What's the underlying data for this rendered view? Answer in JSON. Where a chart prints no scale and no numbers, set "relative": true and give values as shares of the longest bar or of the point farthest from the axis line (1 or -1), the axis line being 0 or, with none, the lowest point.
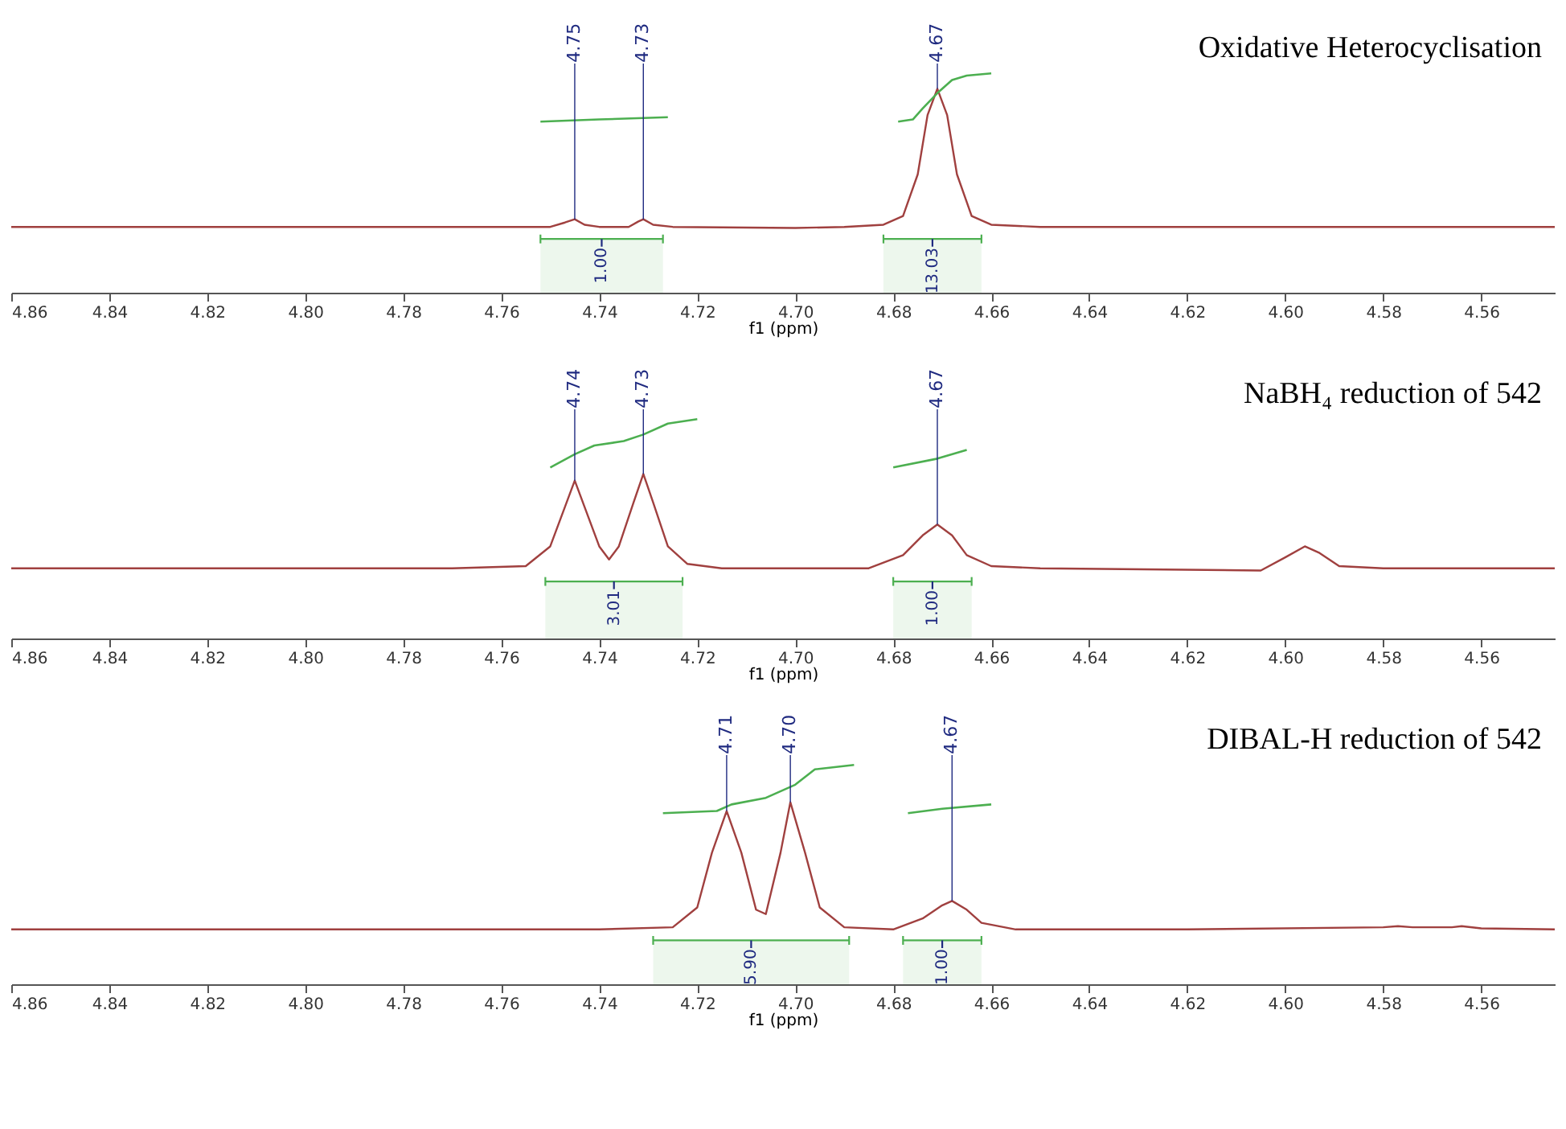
{
  "chart_data": [
    {
      "type": "line",
      "title": "Oxidative Heterocyclisation",
      "xlabel": "f1 (ppm)",
      "xlim": [
        4.86,
        4.545
      ],
      "xticks": [
        4.86,
        4.84,
        4.82,
        {
          "value": 4.8,
          "label": "4.80"
        },
        4.78,
        4.76,
        4.74,
        4.72,
        {
          "value": 4.7,
          "label": "4.70"
        },
        4.68,
        4.66,
        4.64,
        4.62,
        {
          "value": 4.6,
          "label": "4.60"
        },
        4.58,
        4.56
      ],
      "relative": true,
      "tick_labels": "x",
      "series": [
        {
          "color": "#a0403f",
          "x": [
            4.86,
            4.8,
            4.76,
            4.75,
            4.747,
            4.745,
            4.743,
            4.74,
            4.734,
            4.732,
            4.731,
            4.729,
            4.725,
            4.7,
            4.69,
            4.682,
            4.678,
            4.675,
            4.673,
            4.671,
            4.669,
            4.667,
            4.664,
            4.66,
            4.65,
            4.6,
            4.545
          ],
          "values": [
            0.3,
            0.3,
            0.3,
            0.3,
            0.32,
            0.335,
            0.31,
            0.3,
            0.3,
            0.325,
            0.335,
            0.31,
            0.3,
            0.295,
            0.3,
            0.31,
            0.35,
            0.54,
            0.81,
            0.93,
            0.81,
            0.54,
            0.35,
            0.31,
            0.3,
            0.3,
            0.3
          ]
        },
        {
          "color": "#4caf50",
          "x": [
            4.752,
            4.74,
            4.726
          ],
          "values": [
            0.78,
            0.79,
            0.8
          ]
        },
        {
          "color": "#4caf50",
          "x": [
            4.679,
            4.676,
            4.674,
            4.671,
            4.668,
            4.665,
            4.66
          ],
          "values": [
            0.78,
            0.79,
            0.84,
            0.91,
            0.97,
            0.99,
            1.0
          ]
        }
      ],
      "annotations": [
        {
          "text": "4.75",
          "x": 4.745,
          "y": 0.335
        },
        {
          "text": "4.73",
          "x": 4.731,
          "y": 0.335
        },
        {
          "text": "4.67",
          "x": 4.671,
          "y": 0.93
        }
      ],
      "bands": [
        {
          "axis": "x",
          "from": 4.752,
          "to": 4.727,
          "label": "1.00",
          "color": "#4caf50"
        },
        {
          "axis": "x",
          "from": 4.682,
          "to": 4.662,
          "label": "13.03",
          "color": "#4caf50"
        }
      ]
    },
    {
      "type": "line",
      "title": "NaBH₄ reduction of 542",
      "xlabel": "f1 (ppm)",
      "xlim": [
        4.86,
        4.545
      ],
      "xticks": [
        4.86,
        4.84,
        4.82,
        {
          "value": 4.8,
          "label": "4.80"
        },
        4.78,
        4.76,
        4.74,
        4.72,
        {
          "value": 4.7,
          "label": "4.70"
        },
        4.68,
        4.66,
        4.64,
        4.62,
        {
          "value": 4.6,
          "label": "4.60"
        },
        4.58,
        4.56
      ],
      "relative": true,
      "tick_labels": "x",
      "series": [
        {
          "color": "#a0403f",
          "x": [
            4.86,
            4.77,
            4.755,
            4.75,
            4.747,
            4.745,
            4.743,
            4.74,
            4.738,
            4.736,
            4.733,
            4.731,
            4.729,
            4.726,
            4.722,
            4.715,
            4.685,
            4.678,
            4.674,
            4.671,
            4.668,
            4.665,
            4.66,
            4.65,
            4.605,
            4.6,
            4.596,
            4.593,
            4.589,
            4.58,
            4.545
          ],
          "values": [
            0.32,
            0.32,
            0.33,
            0.42,
            0.6,
            0.72,
            0.6,
            0.42,
            0.36,
            0.42,
            0.62,
            0.75,
            0.62,
            0.42,
            0.34,
            0.32,
            0.32,
            0.38,
            0.47,
            0.52,
            0.47,
            0.38,
            0.33,
            0.32,
            0.31,
            0.37,
            0.42,
            0.39,
            0.33,
            0.32,
            0.32
          ]
        },
        {
          "color": "#4caf50",
          "x": [
            4.75,
            4.745,
            4.741,
            4.735,
            4.731,
            4.726,
            4.72
          ],
          "values": [
            0.78,
            0.84,
            0.88,
            0.9,
            0.93,
            0.98,
            1.0
          ]
        },
        {
          "color": "#4caf50",
          "x": [
            4.68,
            4.671,
            4.665
          ],
          "values": [
            0.78,
            0.82,
            0.86
          ]
        }
      ],
      "annotations": [
        {
          "text": "4.74",
          "x": 4.745,
          "y": 0.72
        },
        {
          "text": "4.73",
          "x": 4.731,
          "y": 0.75
        },
        {
          "text": "4.67",
          "x": 4.671,
          "y": 0.52
        }
      ],
      "bands": [
        {
          "axis": "x",
          "from": 4.751,
          "to": 4.723,
          "label": "3.01",
          "color": "#4caf50"
        },
        {
          "axis": "x",
          "from": 4.68,
          "to": 4.664,
          "label": "1.00",
          "color": "#4caf50"
        }
      ]
    },
    {
      "type": "line",
      "title": "DIBAL-H reduction of 542",
      "xlabel": "f1 (ppm)",
      "xlim": [
        4.86,
        4.545
      ],
      "xticks": [
        4.86,
        4.84,
        4.82,
        {
          "value": 4.8,
          "label": "4.80"
        },
        4.78,
        4.76,
        4.74,
        4.72,
        {
          "value": 4.7,
          "label": "4.70"
        },
        4.68,
        4.66,
        4.64,
        4.62,
        {
          "value": 4.6,
          "label": "4.60"
        },
        4.58,
        4.56
      ],
      "relative": true,
      "tick_labels": "x",
      "series": [
        {
          "color": "#a0403f",
          "x": [
            4.86,
            4.74,
            4.725,
            4.72,
            4.717,
            4.714,
            4.711,
            4.708,
            4.706,
            4.703,
            4.701,
            4.698,
            4.695,
            4.69,
            4.68,
            4.674,
            4.67,
            4.668,
            4.665,
            4.662,
            4.655,
            4.62,
            4.58,
            4.577,
            4.574,
            4.566,
            4.564,
            4.56,
            4.545
          ],
          "values": [
            0.25,
            0.25,
            0.26,
            0.35,
            0.6,
            0.79,
            0.6,
            0.34,
            0.32,
            0.6,
            0.83,
            0.6,
            0.35,
            0.26,
            0.25,
            0.3,
            0.36,
            0.38,
            0.34,
            0.28,
            0.25,
            0.25,
            0.26,
            0.265,
            0.26,
            0.26,
            0.265,
            0.255,
            0.25
          ]
        },
        {
          "color": "#4caf50",
          "x": [
            4.727,
            4.716,
            4.713,
            4.706,
            4.7,
            4.696,
            4.688
          ],
          "values": [
            0.78,
            0.79,
            0.82,
            0.85,
            0.91,
            0.98,
            1.0
          ]
        },
        {
          "color": "#4caf50",
          "x": [
            4.677,
            4.67,
            4.66
          ],
          "values": [
            0.78,
            0.8,
            0.82
          ]
        }
      ],
      "annotations": [
        {
          "text": "4.71",
          "x": 4.714,
          "y": 0.79
        },
        {
          "text": "4.70",
          "x": 4.701,
          "y": 0.83
        },
        {
          "text": "4.67",
          "x": 4.668,
          "y": 0.38
        }
      ],
      "bands": [
        {
          "axis": "x",
          "from": 4.729,
          "to": 4.689,
          "label": "5.90",
          "color": "#4caf50"
        },
        {
          "axis": "x",
          "from": 4.678,
          "to": 4.662,
          "label": "1.00",
          "color": "#4caf50"
        }
      ]
    }
  ]
}
